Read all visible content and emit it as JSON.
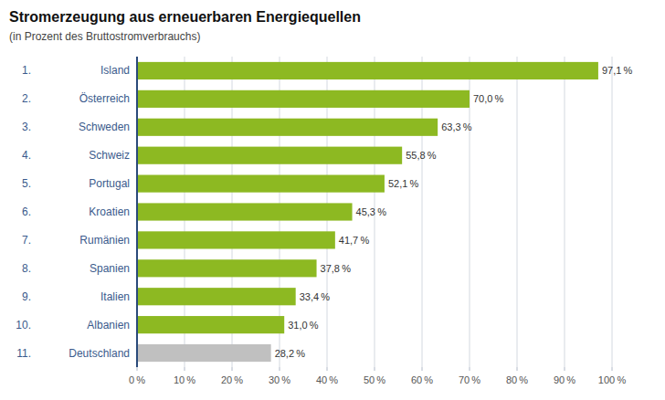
{
  "chart_data": {
    "type": "bar",
    "orientation": "horizontal",
    "title": "Stromerzeugung aus erneuerbaren Energiequellen",
    "subtitle": "(in Prozent des Bruttostromverbrauchs)",
    "categories": [
      "Island",
      "Österreich",
      "Schweden",
      "Schweiz",
      "Portugal",
      "Kroatien",
      "Rumänien",
      "Spanien",
      "Italien",
      "Albanien",
      "Deutschland"
    ],
    "ranks": [
      "1.",
      "2.",
      "3.",
      "4.",
      "5.",
      "6.",
      "7.",
      "8.",
      "9.",
      "10.",
      "11."
    ],
    "values": [
      97.1,
      70.0,
      63.3,
      55.8,
      52.1,
      45.3,
      41.7,
      37.8,
      33.4,
      31.0,
      28.2
    ],
    "value_labels": [
      "97,1 %",
      "70,0 %",
      "63,3 %",
      "55,8 %",
      "52,1 %",
      "45,3 %",
      "41,7 %",
      "37,8 %",
      "33,4 %",
      "31,0 %",
      "28,2 %"
    ],
    "data_labels": true,
    "colors": [
      "#8db922",
      "#8db922",
      "#8db922",
      "#8db922",
      "#8db922",
      "#8db922",
      "#8db922",
      "#8db922",
      "#8db922",
      "#8db922",
      "#c0c0c0"
    ],
    "xlim": [
      0,
      100
    ],
    "xticks": [
      {
        "value": 0,
        "label": "0 %"
      },
      {
        "value": 10,
        "label": "10 %"
      },
      {
        "value": 20,
        "label": "20 %"
      },
      {
        "value": 30,
        "label": "30 %"
      },
      {
        "value": 40,
        "label": "40 %"
      },
      {
        "value": 50,
        "label": "50 %"
      },
      {
        "value": 60,
        "label": "60 %"
      },
      {
        "value": 70,
        "label": "70 %"
      },
      {
        "value": 80,
        "label": "80 %"
      },
      {
        "value": 90,
        "label": "90 %"
      },
      {
        "value": 100,
        "label": "100 %"
      }
    ],
    "grid": true
  }
}
